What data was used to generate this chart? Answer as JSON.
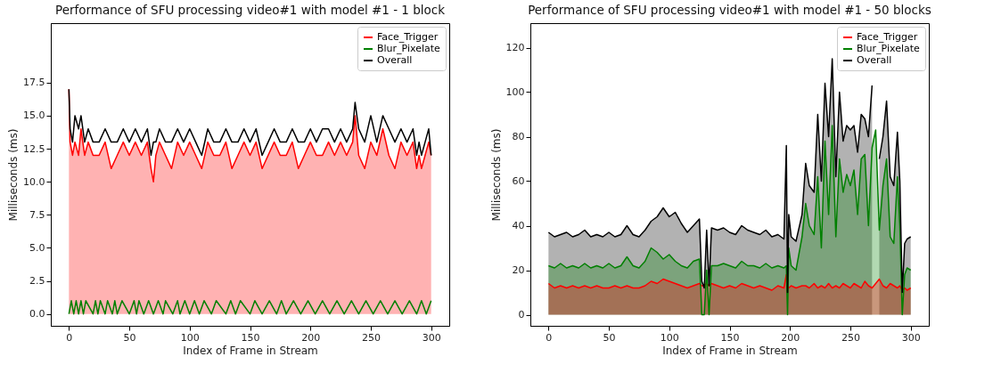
{
  "chart_data": [
    {
      "type": "line",
      "title": "Performance of SFU processing video#1 with model #1 - 1 block",
      "xlabel": "Index of Frame in Stream",
      "ylabel": "Milliseconds (ms)",
      "legend": "top right",
      "grid": false,
      "xlim": [
        -15,
        315
      ],
      "xticks": [
        0,
        50,
        100,
        150,
        200,
        250,
        300
      ],
      "ylim": [
        -0.9,
        22
      ],
      "yticks": [
        {
          "value": 0,
          "label": "0.0"
        },
        2.5,
        {
          "value": 5,
          "label": "5.0"
        },
        7.5,
        {
          "value": 10,
          "label": "10.0"
        },
        12.5,
        {
          "value": 15,
          "label": "15.0"
        },
        17.5
      ],
      "series": [
        {
          "name": "Face_Trigger",
          "type": "area",
          "color": "#ff0000",
          "x": [
            0,
            1,
            3,
            5,
            8,
            10,
            13,
            16,
            20,
            25,
            30,
            35,
            40,
            45,
            50,
            55,
            60,
            65,
            68,
            70,
            72,
            75,
            80,
            85,
            90,
            95,
            100,
            105,
            110,
            115,
            120,
            125,
            130,
            135,
            140,
            145,
            150,
            155,
            160,
            165,
            170,
            175,
            180,
            185,
            190,
            195,
            200,
            205,
            210,
            215,
            220,
            225,
            230,
            235,
            237,
            240,
            245,
            250,
            255,
            260,
            265,
            270,
            275,
            280,
            285,
            288,
            290,
            292,
            295,
            298,
            300
          ],
          "values": [
            17,
            13,
            12,
            13,
            12,
            14,
            12,
            13,
            12,
            12,
            13,
            11,
            12,
            13,
            12,
            13,
            12,
            13,
            11,
            10,
            12,
            13,
            12,
            11,
            13,
            12,
            13,
            12,
            11,
            13,
            12,
            12,
            13,
            11,
            12,
            13,
            12,
            13,
            11,
            12,
            13,
            12,
            12,
            13,
            11,
            12,
            13,
            12,
            12,
            13,
            12,
            13,
            12,
            13,
            15,
            12,
            11,
            13,
            12,
            14,
            12,
            11,
            13,
            12,
            13,
            11,
            12,
            11,
            12,
            13,
            12
          ]
        },
        {
          "name": "Blur_Pixelate",
          "type": "line",
          "color": "#008000",
          "x": [
            0,
            2,
            4,
            6,
            8,
            10,
            12,
            14,
            20,
            22,
            24,
            26,
            30,
            32,
            36,
            38,
            40,
            44,
            50,
            54,
            56,
            58,
            62,
            66,
            70,
            74,
            78,
            80,
            86,
            90,
            92,
            96,
            100,
            104,
            108,
            112,
            118,
            122,
            130,
            134,
            138,
            142,
            150,
            154,
            160,
            166,
            172,
            176,
            180,
            186,
            192,
            198,
            204,
            210,
            216,
            222,
            228,
            234,
            240,
            246,
            252,
            258,
            264,
            270,
            276,
            282,
            288,
            292,
            296,
            300
          ],
          "values": [
            0,
            1,
            0,
            1,
            0,
            1,
            0,
            1,
            0,
            1,
            0,
            1,
            0,
            1,
            0,
            1,
            0,
            1,
            0,
            1,
            0,
            1,
            0,
            1,
            0,
            1,
            0,
            1,
            0,
            1,
            0,
            1,
            0,
            1,
            0,
            1,
            0,
            1,
            0,
            1,
            0,
            1,
            0,
            1,
            0,
            1,
            0,
            1,
            0,
            1,
            0,
            1,
            0,
            1,
            0,
            1,
            0,
            1,
            0,
            1,
            0,
            1,
            0,
            1,
            0,
            1,
            0,
            1,
            0,
            1
          ]
        },
        {
          "name": "Overall",
          "type": "line",
          "color": "#000000",
          "x": [
            0,
            1,
            3,
            5,
            8,
            10,
            13,
            16,
            20,
            25,
            30,
            35,
            40,
            45,
            50,
            55,
            60,
            65,
            68,
            70,
            72,
            75,
            80,
            85,
            90,
            95,
            100,
            105,
            110,
            115,
            120,
            125,
            130,
            135,
            140,
            145,
            150,
            155,
            160,
            165,
            170,
            175,
            180,
            185,
            190,
            195,
            200,
            205,
            210,
            215,
            220,
            225,
            230,
            235,
            237,
            240,
            245,
            250,
            255,
            260,
            265,
            270,
            275,
            280,
            285,
            288,
            290,
            292,
            295,
            298,
            300
          ],
          "values": [
            17,
            14,
            13,
            15,
            14,
            15,
            13,
            14,
            13,
            13,
            14,
            13,
            13,
            14,
            13,
            14,
            13,
            14,
            12,
            13,
            13,
            14,
            13,
            13,
            14,
            13,
            14,
            13,
            12,
            14,
            13,
            13,
            14,
            13,
            13,
            14,
            13,
            14,
            12,
            13,
            14,
            13,
            13,
            14,
            13,
            13,
            14,
            13,
            14,
            14,
            13,
            14,
            13,
            14,
            16,
            14,
            13,
            15,
            13,
            15,
            14,
            13,
            14,
            13,
            14,
            12,
            13,
            12,
            13,
            14,
            12
          ]
        }
      ]
    },
    {
      "type": "line",
      "title": "Performance of SFU processing video#1 with model #1 - 50 blocks",
      "xlabel": "Index of Frame in Stream",
      "ylabel": "Milliseconds (ms)",
      "legend": "top right",
      "grid": false,
      "xlim": [
        -15,
        315
      ],
      "xticks": [
        0,
        50,
        100,
        150,
        200,
        250,
        300
      ],
      "ylim": [
        -5,
        131
      ],
      "yticks": [
        0,
        20,
        40,
        60,
        80,
        100,
        120
      ],
      "x": [
        0,
        5,
        10,
        15,
        20,
        25,
        30,
        35,
        40,
        45,
        50,
        55,
        60,
        65,
        70,
        75,
        80,
        85,
        90,
        95,
        100,
        105,
        110,
        115,
        120,
        125,
        127,
        129,
        131,
        133,
        135,
        140,
        145,
        150,
        155,
        160,
        165,
        170,
        175,
        180,
        185,
        190,
        195,
        197,
        198,
        199,
        201,
        205,
        210,
        213,
        216,
        220,
        223,
        226,
        229,
        232,
        235,
        238,
        241,
        244,
        247,
        250,
        253,
        256,
        259,
        262,
        265,
        268,
        271,
        274,
        277,
        280,
        283,
        286,
        289,
        291,
        293,
        295,
        297,
        300
      ],
      "series": [
        {
          "name": "Face_Trigger",
          "type": "area",
          "color": "#ff0000",
          "values": [
            14,
            12,
            13,
            12,
            13,
            12,
            13,
            12,
            13,
            12,
            12,
            13,
            12,
            13,
            12,
            12,
            13,
            15,
            14,
            16,
            15,
            14,
            13,
            12,
            13,
            14,
            13,
            13,
            14,
            13,
            14,
            13,
            12,
            13,
            12,
            14,
            13,
            12,
            13,
            12,
            11,
            13,
            12,
            18,
            13,
            12,
            13,
            12,
            13,
            13,
            12,
            14,
            12,
            13,
            12,
            14,
            12,
            13,
            12,
            14,
            13,
            12,
            14,
            13,
            12,
            15,
            13,
            12,
            14,
            16,
            13,
            12,
            14,
            13,
            12,
            13,
            11,
            12,
            11,
            12
          ]
        },
        {
          "name": "Blur_Pixelate",
          "type": "area",
          "color": "#008000",
          "values": [
            22,
            21,
            23,
            21,
            22,
            21,
            23,
            21,
            22,
            21,
            23,
            21,
            22,
            26,
            22,
            21,
            24,
            30,
            28,
            25,
            27,
            24,
            22,
            21,
            24,
            25,
            0,
            0,
            20,
            0,
            22,
            22,
            23,
            22,
            21,
            24,
            22,
            22,
            21,
            23,
            21,
            22,
            21,
            22,
            0,
            30,
            22,
            20,
            35,
            50,
            40,
            36,
            62,
            30,
            78,
            45,
            85,
            35,
            70,
            55,
            63,
            58,
            65,
            45,
            70,
            72,
            40,
            75,
            83,
            38,
            58,
            70,
            35,
            32,
            62,
            40,
            0,
            18,
            21,
            20
          ]
        },
        {
          "name": "Overall",
          "type": "area",
          "color": "#000000",
          "values": [
            37,
            35,
            36,
            37,
            35,
            36,
            38,
            35,
            36,
            35,
            37,
            35,
            36,
            40,
            36,
            35,
            38,
            42,
            44,
            48,
            44,
            46,
            41,
            37,
            40,
            43,
            15,
            12,
            38,
            13,
            39,
            38,
            39,
            37,
            36,
            40,
            38,
            37,
            36,
            38,
            35,
            36,
            34,
            76,
            10,
            45,
            35,
            33,
            45,
            68,
            58,
            55,
            90,
            60,
            104,
            80,
            115,
            62,
            100,
            78,
            85,
            83,
            85,
            73,
            90,
            88,
            80,
            103,
            null,
            70,
            80,
            96,
            62,
            58,
            82,
            60,
            10,
            32,
            34,
            35
          ]
        }
      ]
    }
  ]
}
